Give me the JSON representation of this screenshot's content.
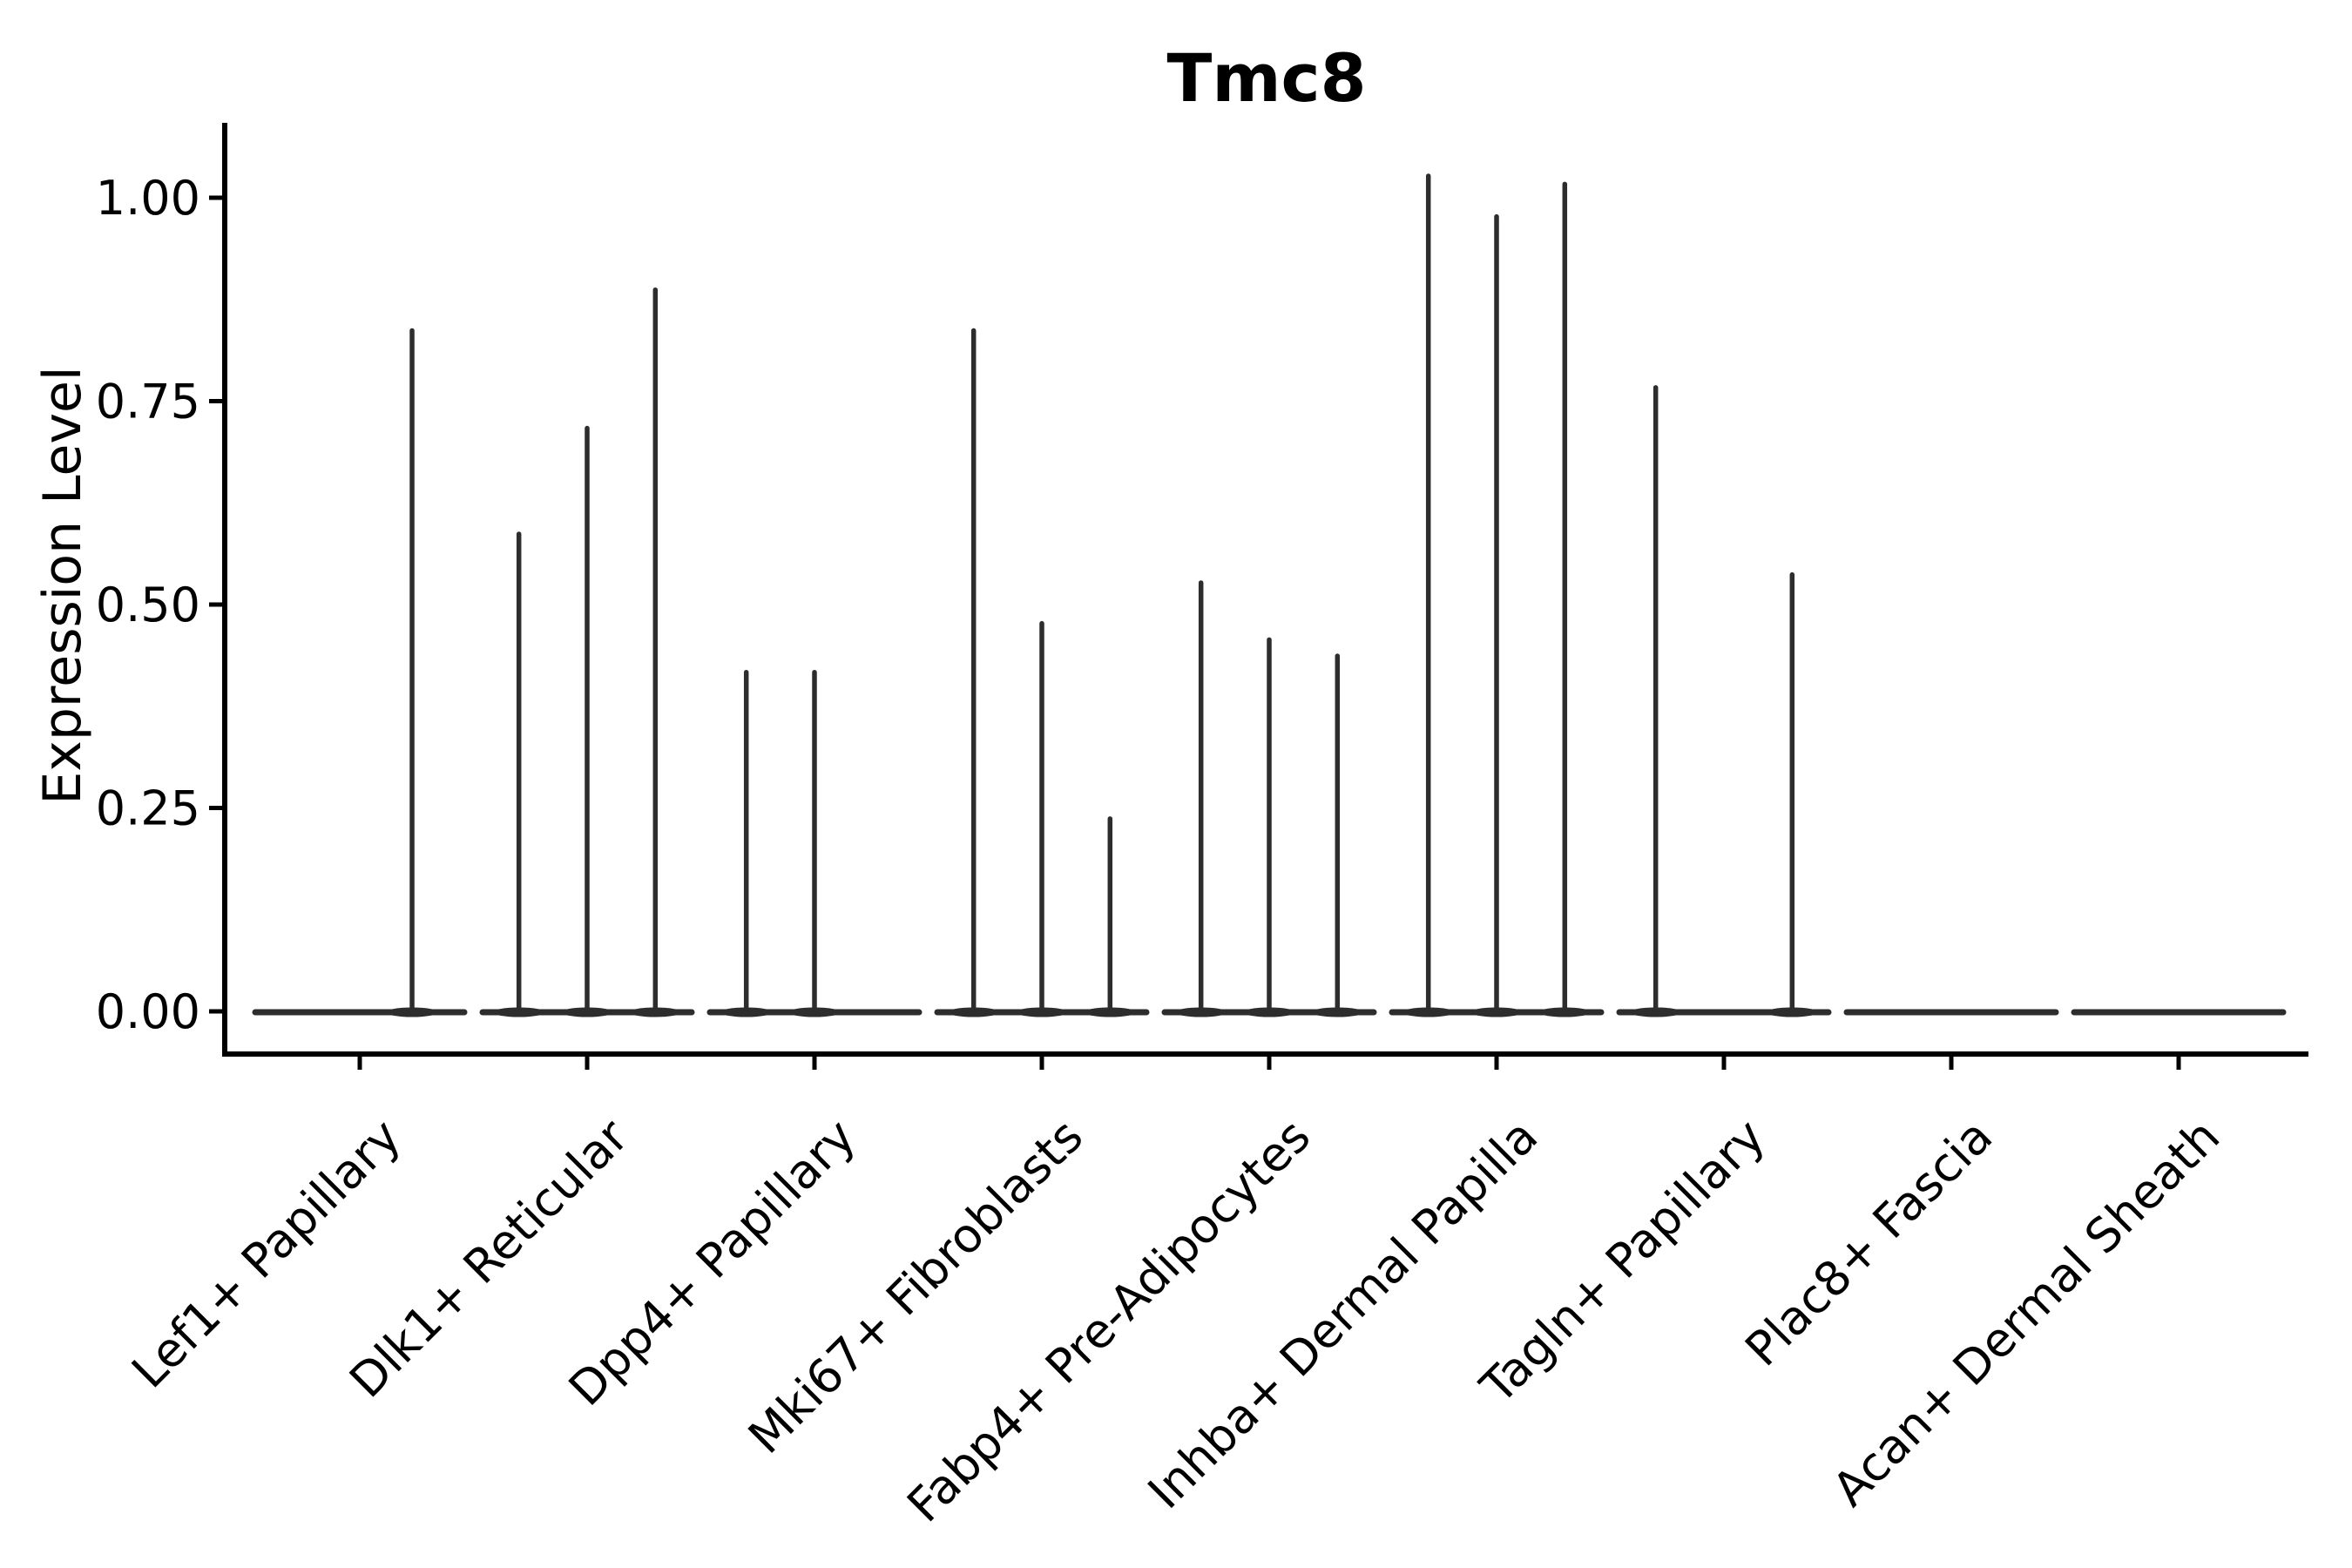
{
  "chart_data": {
    "type": "violin",
    "title": "Tmc8",
    "ylabel": "Expression Level",
    "xlabel": "",
    "legend_position": "none",
    "grid": false,
    "ylim": [
      -0.07,
      1.09
    ],
    "yticks": [
      0,
      0.25,
      0.5,
      0.75,
      1.0
    ],
    "ytick_labels": [
      "0.00",
      "0.25",
      "0.50",
      "0.75",
      "1.00"
    ],
    "categories": [
      "Lef1+ Papillary",
      "Dlk1+ Reticular",
      "Dpp4+ Papillary",
      "Mki67+ Fibroblasts",
      "Fabp4+ Pre-Adipocytes",
      "Inhba+ Dermal Papilla",
      "Tagln+ Papillary",
      "Plac8+ Fascia",
      "Acan+ Dermal Sheath"
    ],
    "series": [
      {
        "name": "Lef1+ Papillary",
        "spikes": [
          {
            "offset": 0.23,
            "max": 0.84
          }
        ]
      },
      {
        "name": "Dlk1+ Reticular",
        "spikes": [
          {
            "offset": -0.3,
            "max": 0.59
          },
          {
            "offset": 0.0,
            "max": 0.72
          },
          {
            "offset": 0.3,
            "max": 0.89
          }
        ]
      },
      {
        "name": "Dpp4+ Papillary",
        "spikes": [
          {
            "offset": -0.3,
            "max": 0.42
          },
          {
            "offset": 0.0,
            "max": 0.42
          }
        ]
      },
      {
        "name": "Mki67+ Fibroblasts",
        "spikes": [
          {
            "offset": -0.3,
            "max": 0.84
          },
          {
            "offset": 0.0,
            "max": 0.48
          },
          {
            "offset": 0.3,
            "max": 0.24
          }
        ]
      },
      {
        "name": "Fabp4+ Pre-Adipocytes",
        "spikes": [
          {
            "offset": -0.3,
            "max": 0.53
          },
          {
            "offset": 0.0,
            "max": 0.46
          },
          {
            "offset": 0.3,
            "max": 0.44
          }
        ]
      },
      {
        "name": "Inhba+ Dermal Papilla",
        "spikes": [
          {
            "offset": -0.3,
            "max": 1.03
          },
          {
            "offset": 0.0,
            "max": 0.98
          },
          {
            "offset": 0.3,
            "max": 1.02
          }
        ]
      },
      {
        "name": "Tagln+ Papillary",
        "spikes": [
          {
            "offset": -0.3,
            "max": 0.77
          },
          {
            "offset": 0.3,
            "max": 0.54
          }
        ]
      },
      {
        "name": "Plac8+ Fascia",
        "spikes": []
      },
      {
        "name": "Acan+ Dermal Sheath",
        "spikes": []
      }
    ],
    "colors": {
      "violin": "#2d2d2d",
      "axis": "#000000",
      "text": "#000000",
      "background": "#ffffff"
    }
  }
}
